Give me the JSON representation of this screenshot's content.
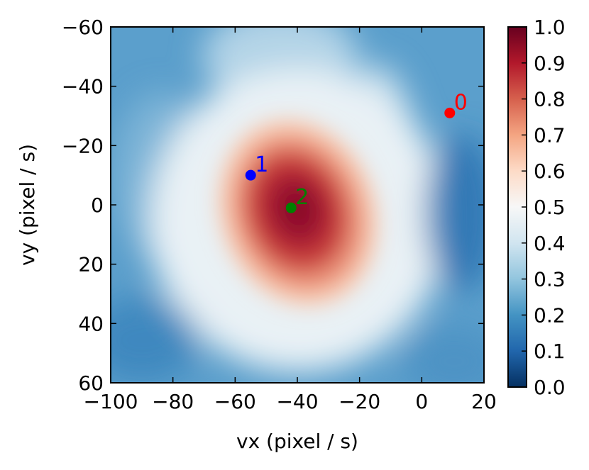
{
  "chart_data": {
    "type": "heatmap",
    "title": "",
    "xlabel": "vx (pixel / s)",
    "ylabel": "vy (pixel / s)",
    "xlim": [
      -100,
      20
    ],
    "ylim": [
      60,
      -60
    ],
    "y_inverted": true,
    "x_ticks": [
      {
        "value": -100,
        "label": "−100"
      },
      {
        "value": -80,
        "label": "−80"
      },
      {
        "value": -60,
        "label": "−60"
      },
      {
        "value": -40,
        "label": "−40"
      },
      {
        "value": -20,
        "label": "−20"
      },
      {
        "value": 0,
        "label": "0"
      },
      {
        "value": 20,
        "label": "20"
      }
    ],
    "y_ticks": [
      {
        "value": -60,
        "label": "−60"
      },
      {
        "value": -40,
        "label": "−40"
      },
      {
        "value": -20,
        "label": "−20"
      },
      {
        "value": 0,
        "label": "0"
      },
      {
        "value": 20,
        "label": "20"
      },
      {
        "value": 40,
        "label": "40"
      },
      {
        "value": 60,
        "label": "60"
      }
    ],
    "colormap": "RdBu_r",
    "colorbar": {
      "range": [
        0.0,
        1.0
      ],
      "ticks": [
        {
          "value": 0.0,
          "label": "0.0"
        },
        {
          "value": 0.1,
          "label": "0.1"
        },
        {
          "value": 0.2,
          "label": "0.2"
        },
        {
          "value": 0.3,
          "label": "0.3"
        },
        {
          "value": 0.4,
          "label": "0.4"
        },
        {
          "value": 0.5,
          "label": "0.5"
        },
        {
          "value": 0.6,
          "label": "0.6"
        },
        {
          "value": 0.7,
          "label": "0.7"
        },
        {
          "value": 0.8,
          "label": "0.8"
        },
        {
          "value": 0.9,
          "label": "0.9"
        },
        {
          "value": 1.0,
          "label": "1.0"
        }
      ]
    },
    "points": [
      {
        "label": "0",
        "x": 9,
        "y": -31,
        "color": "#ff0000"
      },
      {
        "label": "1",
        "x": -55,
        "y": -10,
        "color": "#0000ff"
      },
      {
        "label": "2",
        "x": -42,
        "y": 1,
        "color": "#008000"
      }
    ]
  }
}
